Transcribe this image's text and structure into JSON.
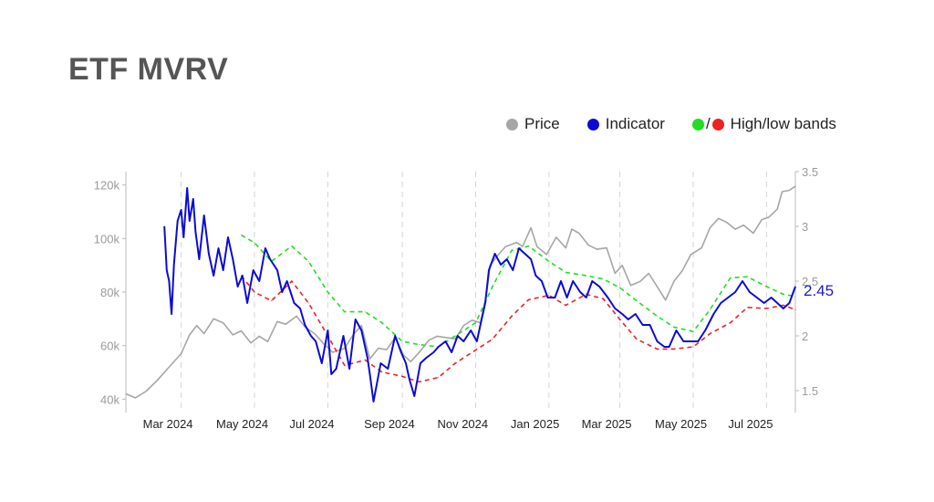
{
  "title": "ETF MVRV",
  "legend": [
    {
      "label": "Price",
      "color": "#a6a6a6"
    },
    {
      "label": "Indicator",
      "color": "#0b0bd6"
    },
    {
      "label": "High/low bands",
      "colors": [
        "#22dd22",
        "#ee2222"
      ],
      "separator": "/"
    }
  ],
  "chart_data": {
    "type": "line",
    "x_range": [
      "2024-01-15",
      "2025-07-25"
    ],
    "x_ticks": [
      {
        "label": "Mar 2024",
        "date": "2024-03-01"
      },
      {
        "label": "May 2024",
        "date": "2024-05-01"
      },
      {
        "label": "Jul 2024",
        "date": "2024-07-01"
      },
      {
        "label": "Sep 2024",
        "date": "2024-09-01"
      },
      {
        "label": "Nov 2024",
        "date": "2024-11-01"
      },
      {
        "label": "Jan 2025",
        "date": "2025-01-01"
      },
      {
        "label": "Mar 2025",
        "date": "2025-03-01"
      },
      {
        "label": "May 2025",
        "date": "2025-05-01"
      },
      {
        "label": "Jul 2025",
        "date": "2025-07-01"
      }
    ],
    "y_left": {
      "range": [
        35000,
        125000
      ],
      "ticks": [
        40000,
        60000,
        80000,
        100000,
        120000
      ],
      "tick_labels": [
        "40k",
        "60k",
        "80k",
        "100k",
        "120k"
      ]
    },
    "y_right": {
      "range": [
        1.3,
        3.5
      ],
      "ticks": [
        1.5,
        2,
        2.5,
        3,
        3.5
      ],
      "tick_labels": [
        "1.5",
        "2",
        "2.5",
        "3",
        "3.5"
      ]
    },
    "grid": "vertical dashed",
    "last_value_label": "2.45",
    "series": [
      {
        "name": "Price",
        "axis": "left",
        "color": "#a6a6a6",
        "x": [
          "2024-01-15",
          "2024-01-23",
          "2024-02-01",
          "2024-02-10",
          "2024-02-20",
          "2024-03-01",
          "2024-03-08",
          "2024-03-14",
          "2024-03-20",
          "2024-03-28",
          "2024-04-05",
          "2024-04-13",
          "2024-04-20",
          "2024-04-28",
          "2024-05-05",
          "2024-05-12",
          "2024-05-20",
          "2024-05-27",
          "2024-06-05",
          "2024-06-12",
          "2024-06-20",
          "2024-06-28",
          "2024-07-05",
          "2024-07-15",
          "2024-07-22",
          "2024-07-29",
          "2024-08-05",
          "2024-08-12",
          "2024-08-19",
          "2024-08-26",
          "2024-09-02",
          "2024-09-08",
          "2024-09-16",
          "2024-09-23",
          "2024-09-30",
          "2024-10-08",
          "2024-10-15",
          "2024-10-22",
          "2024-10-29",
          "2024-11-05",
          "2024-11-10",
          "2024-11-13",
          "2024-11-20",
          "2024-11-26",
          "2024-12-05",
          "2024-12-10",
          "2024-12-17",
          "2024-12-22",
          "2024-12-30",
          "2025-01-07",
          "2025-01-15",
          "2025-01-20",
          "2025-01-26",
          "2025-02-03",
          "2025-02-10",
          "2025-02-18",
          "2025-02-25",
          "2025-03-03",
          "2025-03-10",
          "2025-03-18",
          "2025-03-25",
          "2025-04-01",
          "2025-04-08",
          "2025-04-15",
          "2025-04-22",
          "2025-04-29",
          "2025-05-08",
          "2025-05-15",
          "2025-05-22",
          "2025-05-29",
          "2025-06-05",
          "2025-06-12",
          "2025-06-20",
          "2025-06-27",
          "2025-07-03",
          "2025-07-10",
          "2025-07-14",
          "2025-07-20",
          "2025-07-25"
        ],
        "values": [
          42000,
          40500,
          43000,
          47000,
          52000,
          57000,
          64000,
          67500,
          64500,
          70000,
          68500,
          64000,
          65500,
          61000,
          63500,
          61500,
          69000,
          68000,
          71000,
          67000,
          64500,
          60500,
          57500,
          59000,
          64000,
          67500,
          55000,
          59000,
          58500,
          63000,
          56500,
          54000,
          58000,
          62000,
          63500,
          63000,
          62500,
          67500,
          69500,
          68500,
          79000,
          90000,
          94000,
          97000,
          98500,
          97000,
          104000,
          97000,
          94000,
          100500,
          96500,
          103500,
          102000,
          97500,
          96000,
          96500,
          87000,
          90000,
          82500,
          84000,
          87000,
          82000,
          77000,
          84000,
          88000,
          94000,
          96500,
          104000,
          107500,
          106000,
          103500,
          105000,
          102000,
          107000,
          108000,
          111000,
          117500,
          118000,
          119500
        ]
      },
      {
        "name": "Indicator",
        "axis": "right",
        "color": "#0b0bd6",
        "x": [
          "2024-02-16",
          "2024-02-18",
          "2024-02-20",
          "2024-02-22",
          "2024-02-24",
          "2024-02-27",
          "2024-03-01",
          "2024-03-03",
          "2024-03-06",
          "2024-03-08",
          "2024-03-11",
          "2024-03-13",
          "2024-03-16",
          "2024-03-20",
          "2024-03-24",
          "2024-03-28",
          "2024-04-01",
          "2024-04-05",
          "2024-04-09",
          "2024-04-13",
          "2024-04-17",
          "2024-04-21",
          "2024-04-25",
          "2024-04-30",
          "2024-05-05",
          "2024-05-10",
          "2024-05-14",
          "2024-05-20",
          "2024-05-24",
          "2024-05-28",
          "2024-06-03",
          "2024-06-08",
          "2024-06-12",
          "2024-06-17",
          "2024-06-21",
          "2024-06-26",
          "2024-07-01",
          "2024-07-04",
          "2024-07-08",
          "2024-07-14",
          "2024-07-19",
          "2024-07-24",
          "2024-07-29",
          "2024-08-03",
          "2024-08-05",
          "2024-08-08",
          "2024-08-14",
          "2024-08-20",
          "2024-08-26",
          "2024-08-31",
          "2024-09-04",
          "2024-09-07",
          "2024-09-11",
          "2024-09-16",
          "2024-09-21",
          "2024-09-27",
          "2024-10-01",
          "2024-10-07",
          "2024-10-12",
          "2024-10-17",
          "2024-10-22",
          "2024-10-28",
          "2024-11-02",
          "2024-11-05",
          "2024-11-09",
          "2024-11-12",
          "2024-11-17",
          "2024-11-22",
          "2024-11-27",
          "2024-12-02",
          "2024-12-07",
          "2024-12-12",
          "2024-12-17",
          "2024-12-21",
          "2024-12-26",
          "2024-12-31",
          "2025-01-06",
          "2025-01-11",
          "2025-01-16",
          "2025-01-21",
          "2025-01-27",
          "2025-02-01",
          "2025-02-06",
          "2025-02-12",
          "2025-02-19",
          "2025-02-25",
          "2025-03-03",
          "2025-03-08",
          "2025-03-14",
          "2025-03-20",
          "2025-03-26",
          "2025-04-01",
          "2025-04-07",
          "2025-04-11",
          "2025-04-17",
          "2025-04-23",
          "2025-04-29",
          "2025-05-05",
          "2025-05-11",
          "2025-05-18",
          "2025-05-24",
          "2025-05-30",
          "2025-06-05",
          "2025-06-11",
          "2025-06-17",
          "2025-06-23",
          "2025-06-29",
          "2025-07-05",
          "2025-07-10",
          "2025-07-15",
          "2025-07-20",
          "2025-07-25"
        ],
        "values": [
          3.0,
          2.6,
          2.5,
          2.2,
          2.65,
          3.05,
          3.15,
          2.9,
          3.35,
          3.05,
          3.25,
          2.95,
          2.7,
          3.1,
          2.75,
          2.55,
          2.8,
          2.6,
          2.9,
          2.7,
          2.45,
          2.55,
          2.3,
          2.6,
          2.5,
          2.8,
          2.7,
          2.6,
          2.4,
          2.5,
          2.3,
          2.25,
          2.1,
          2.0,
          1.95,
          1.75,
          2.05,
          1.65,
          1.7,
          2.0,
          1.7,
          2.15,
          2.05,
          1.8,
          1.65,
          1.4,
          1.75,
          1.7,
          2.0,
          1.85,
          1.75,
          1.6,
          1.45,
          1.75,
          1.8,
          1.85,
          1.9,
          1.95,
          1.85,
          2.0,
          1.95,
          2.05,
          1.95,
          2.1,
          2.3,
          2.6,
          2.75,
          2.65,
          2.7,
          2.6,
          2.8,
          2.75,
          2.7,
          2.55,
          2.5,
          2.35,
          2.35,
          2.5,
          2.35,
          2.5,
          2.4,
          2.35,
          2.5,
          2.45,
          2.35,
          2.25,
          2.2,
          2.15,
          2.2,
          2.1,
          2.1,
          1.95,
          1.9,
          1.9,
          2.05,
          1.95,
          1.95,
          1.95,
          2.05,
          2.2,
          2.3,
          2.35,
          2.4,
          2.5,
          2.4,
          2.35,
          2.3,
          2.35,
          2.3,
          2.25,
          2.3,
          2.45
        ]
      },
      {
        "name": "High band",
        "axis": "right",
        "color": "#22dd22",
        "dashed": true,
        "x": [
          "2024-04-20",
          "2024-05-01",
          "2024-05-15",
          "2024-06-01",
          "2024-06-15",
          "2024-07-01",
          "2024-07-15",
          "2024-08-01",
          "2024-08-15",
          "2024-09-01",
          "2024-09-15",
          "2024-10-01",
          "2024-10-15",
          "2024-11-01",
          "2024-11-15",
          "2024-12-01",
          "2024-12-15",
          "2025-01-01",
          "2025-01-15",
          "2025-02-01",
          "2025-02-15",
          "2025-03-01",
          "2025-03-15",
          "2025-04-01",
          "2025-04-15",
          "2025-05-01",
          "2025-05-15",
          "2025-06-01",
          "2025-06-15",
          "2025-07-01",
          "2025-07-15",
          "2025-07-25"
        ],
        "values": [
          2.92,
          2.85,
          2.68,
          2.82,
          2.68,
          2.4,
          2.22,
          2.22,
          2.12,
          1.95,
          1.92,
          1.9,
          2.0,
          2.12,
          2.45,
          2.78,
          2.82,
          2.68,
          2.58,
          2.55,
          2.52,
          2.44,
          2.32,
          2.18,
          2.08,
          2.04,
          2.24,
          2.53,
          2.54,
          2.45,
          2.38,
          2.36
        ]
      },
      {
        "name": "Low band",
        "axis": "right",
        "color": "#ee2222",
        "dashed": true,
        "x": [
          "2024-04-20",
          "2024-05-01",
          "2024-05-15",
          "2024-06-01",
          "2024-06-15",
          "2024-07-01",
          "2024-07-15",
          "2024-08-01",
          "2024-08-15",
          "2024-09-01",
          "2024-09-15",
          "2024-10-01",
          "2024-10-15",
          "2024-11-01",
          "2024-11-15",
          "2024-12-01",
          "2024-12-15",
          "2025-01-01",
          "2025-01-15",
          "2025-02-01",
          "2025-02-15",
          "2025-03-01",
          "2025-03-15",
          "2025-04-01",
          "2025-04-15",
          "2025-05-01",
          "2025-05-15",
          "2025-06-01",
          "2025-06-15",
          "2025-07-01",
          "2025-07-15",
          "2025-07-25"
        ],
        "values": [
          2.55,
          2.4,
          2.32,
          2.5,
          2.3,
          2.0,
          1.73,
          1.78,
          1.67,
          1.63,
          1.58,
          1.62,
          1.75,
          1.87,
          1.97,
          2.18,
          2.33,
          2.37,
          2.28,
          2.38,
          2.34,
          2.15,
          1.97,
          1.88,
          1.88,
          1.9,
          2.02,
          2.12,
          2.26,
          2.25,
          2.28,
          2.24
        ]
      }
    ]
  }
}
